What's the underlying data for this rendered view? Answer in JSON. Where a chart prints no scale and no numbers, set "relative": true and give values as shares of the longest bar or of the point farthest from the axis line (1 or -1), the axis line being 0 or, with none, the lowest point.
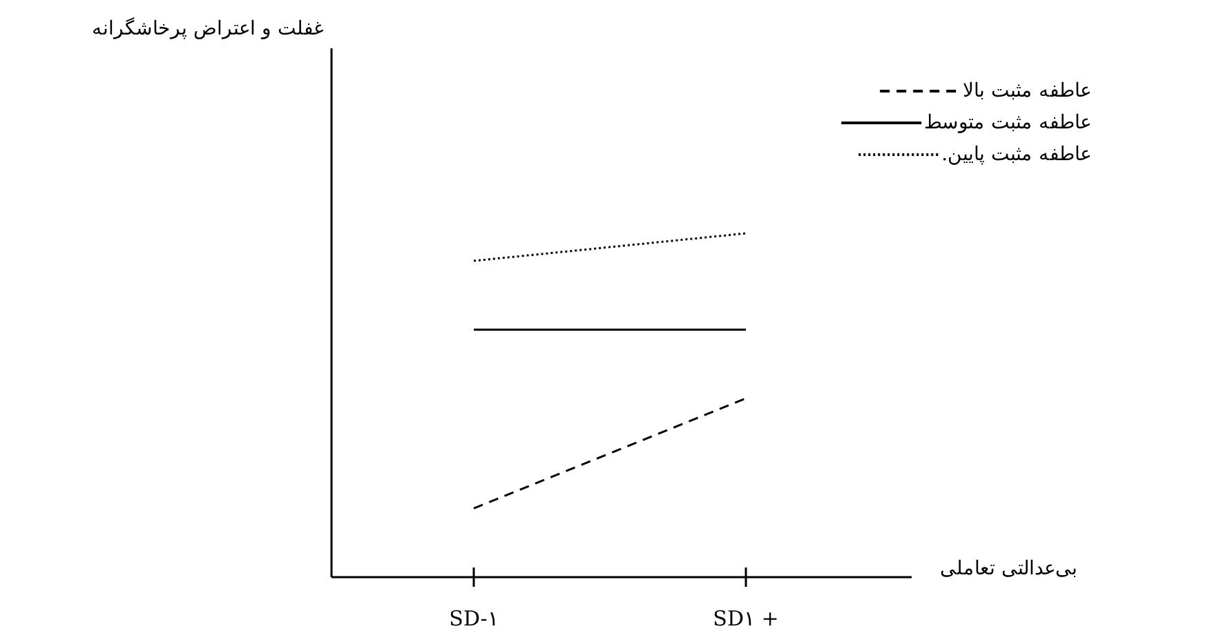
{
  "chart_data": {
    "type": "line",
    "relative": true,
    "annotations": [
      "غفلت و اعتراض پرخاشگرانه"
    ],
    "xlabel": "بی‌عدالتی تعاملی",
    "categories": [
      "SD-۱",
      "SD۱ +"
    ],
    "legend": "top right",
    "series": [
      {
        "name": "عاطفه مثبت بالا",
        "color": "#000000",
        "line_style": "dashed",
        "values": [
          0.2,
          0.52
        ]
      },
      {
        "name": "عاطفه مثبت متوسط",
        "color": "#000000",
        "line_style": "solid",
        "values": [
          0.72,
          0.72
        ]
      },
      {
        "name": "عاطفه مثبت پایین.",
        "color": "#000000",
        "line_style": "dotted",
        "values": [
          0.92,
          1
        ]
      }
    ]
  }
}
